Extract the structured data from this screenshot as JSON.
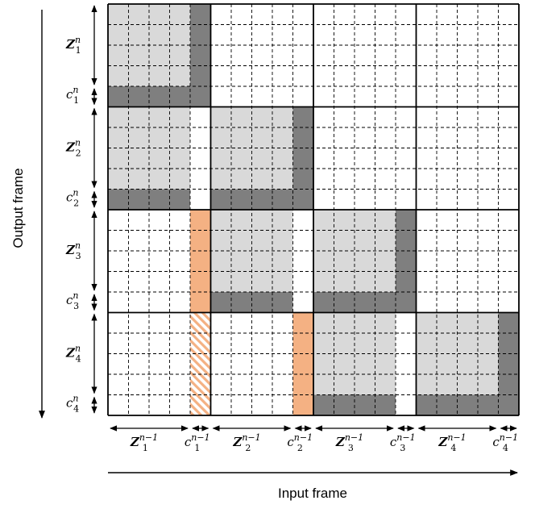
{
  "axes": {
    "y_title": "Output frame",
    "x_title": "Input frame"
  },
  "grid": {
    "blocks": 4,
    "rows_per_block": 5,
    "cols_per_block": 5,
    "z_sub_rows": 4,
    "c_sub_rows": 1
  },
  "colors": {
    "light_gray": "#d9d9d9",
    "dark_gray": "#7f7f7f",
    "orange": "#f4b183",
    "hatch": "#f4b183",
    "line": "#000000"
  },
  "block_types": [
    [
      "diag",
      "none",
      "none",
      "none"
    ],
    [
      "prev",
      "diag",
      "none",
      "none"
    ],
    [
      "orange_c",
      "prev",
      "diag",
      "none"
    ],
    [
      "orange_hatch_c",
      "orange_c",
      "prev",
      "diag"
    ]
  ],
  "row_labels": [
    {
      "z": "Z",
      "z_sub": "1",
      "z_sup": "n",
      "c": "c",
      "c_sub": "1",
      "c_sup": "n"
    },
    {
      "z": "Z",
      "z_sub": "2",
      "z_sup": "n",
      "c": "c",
      "c_sub": "2",
      "c_sup": "n"
    },
    {
      "z": "Z",
      "z_sub": "3",
      "z_sup": "n",
      "c": "c",
      "c_sub": "3",
      "c_sup": "n"
    },
    {
      "z": "Z",
      "z_sub": "4",
      "z_sup": "n",
      "c": "c",
      "c_sub": "4",
      "c_sup": "n"
    }
  ],
  "col_labels": [
    {
      "z": "Z",
      "z_sub": "1",
      "z_sup": "n−1",
      "c": "c",
      "c_sub": "1",
      "c_sup": "n−1"
    },
    {
      "z": "Z",
      "z_sub": "2",
      "z_sup": "n−1",
      "c": "c",
      "c_sub": "2",
      "c_sup": "n−1"
    },
    {
      "z": "Z",
      "z_sub": "3",
      "z_sup": "n−1",
      "c": "c",
      "c_sub": "3",
      "c_sup": "n−1"
    },
    {
      "z": "Z",
      "z_sub": "4",
      "z_sup": "n−1",
      "c": "c",
      "c_sub": "4",
      "c_sup": "n−1"
    }
  ]
}
